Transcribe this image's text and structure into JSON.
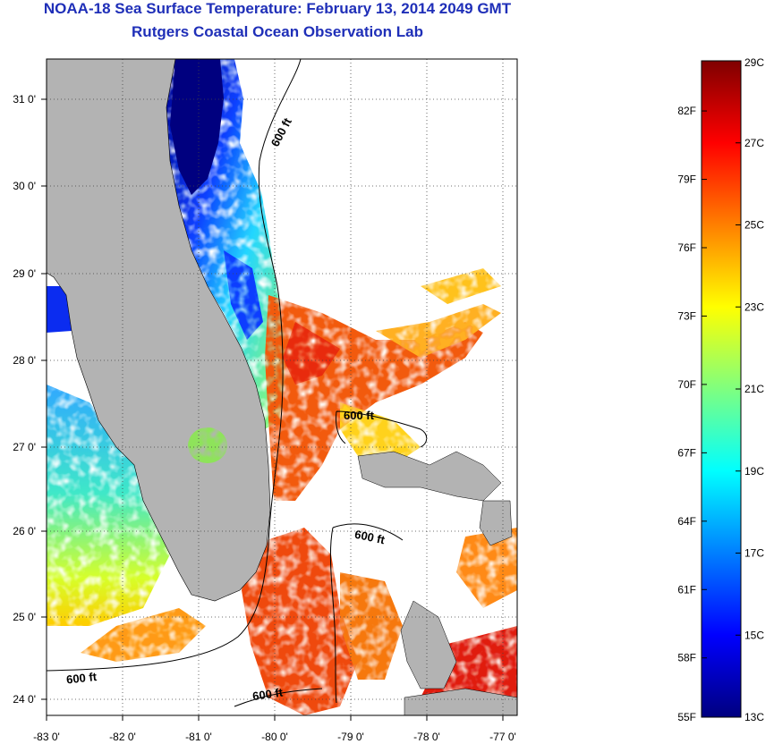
{
  "header": {
    "title": "NOAA-18 Sea Surface Temperature:  February 13, 2014 2049 GMT",
    "subtitle": "Rutgers Coastal Ocean Observation Lab"
  },
  "map": {
    "lon_ticks": [
      "-83 0'",
      "-82 0'",
      "-81 0'",
      "-80 0'",
      "-79 0'",
      "-78 0'",
      "-77 0'"
    ],
    "lat_ticks": [
      "31 0'",
      "30 0'",
      "29 0'",
      "28 0'",
      "27 0'",
      "26 0'",
      "25 0'",
      "24 0'"
    ],
    "contour_label": "600 ft",
    "colors": {
      "land": "#b3b3b3",
      "no_data": "#ffffff",
      "frame": "#000000"
    }
  },
  "colorbar": {
    "fahrenheit_labels": [
      "82F",
      "79F",
      "76F",
      "73F",
      "70F",
      "67F",
      "64F",
      "61F",
      "58F",
      "55F"
    ],
    "celsius_labels": [
      "29C",
      "27C",
      "25C",
      "23C",
      "21C",
      "19C",
      "17C",
      "15C",
      "13C"
    ],
    "colors": [
      "#00007f",
      "#0000ff",
      "#007fff",
      "#00ffff",
      "#7fff7f",
      "#ffff00",
      "#ff7f00",
      "#ff0000",
      "#7f0000"
    ]
  }
}
